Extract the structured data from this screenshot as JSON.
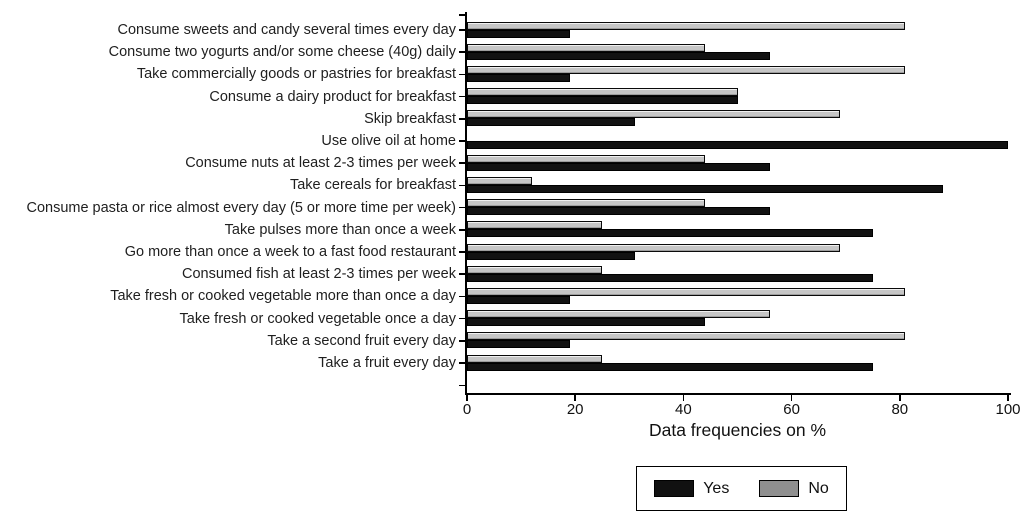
{
  "chart_data": {
    "type": "bar",
    "orientation": "horizontal",
    "title": "",
    "xlabel": "Data frequencies on %",
    "ylabel": "",
    "xlim": [
      0,
      100
    ],
    "xticks": [
      0,
      20,
      40,
      60,
      80,
      100
    ],
    "grid": false,
    "legend_position": "bottom-center-boxed",
    "bar_group_order_top_to_bottom": [
      "No",
      "Yes"
    ],
    "categories": [
      "Consume sweets and candy several times every day",
      "Consume two yogurts and/or some cheese (40g) daily",
      "Take commercially goods or pastries for breakfast",
      "Consume a dairy product for breakfast",
      "Skip breakfast",
      "Use olive oil at home",
      "Consume nuts at least 2-3 times per week",
      "Take cereals for breakfast",
      "Consume pasta or rice almost every day (5 or more time per week)",
      "Take pulses more than once a week",
      "Go more than once a week to a fast food restaurant",
      "Consumed fish at least 2-3 times per week",
      "Take fresh or cooked vegetable more than once a day",
      "Take fresh or cooked vegetable once a day",
      "Take a second fruit every day",
      "Take a fruit every day"
    ],
    "series": [
      {
        "name": "Yes",
        "color": "#111111",
        "values": [
          19,
          56,
          19,
          50,
          31,
          100,
          56,
          88,
          56,
          75,
          31,
          75,
          19,
          44,
          19,
          75
        ]
      },
      {
        "name": "No",
        "color": "#8f8f8f",
        "bar_fill": "#c6c6c6",
        "values": [
          81,
          44,
          81,
          50,
          69,
          0,
          44,
          12,
          44,
          25,
          69,
          25,
          81,
          56,
          81,
          25
        ]
      }
    ],
    "colors": {
      "axis": "#000000",
      "background": "#ffffff",
      "yes_bar": "#111111",
      "no_bar_fill": "#c6c6c6",
      "no_legend_swatch": "#8f8f8f"
    }
  }
}
